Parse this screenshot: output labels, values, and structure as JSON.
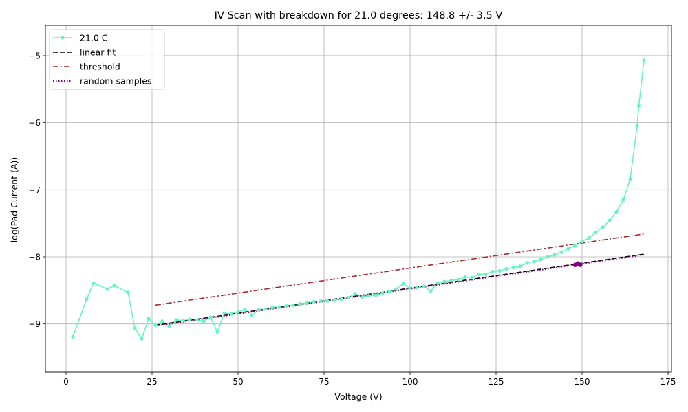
{
  "chart_data": {
    "type": "line",
    "title": "IV Scan with breakdown for 21.0 degrees: 148.8 +/- 3.5 V",
    "xlabel": "Voltage (V)",
    "ylabel": "log(Pad Current (A))",
    "xlim": [
      -6,
      176
    ],
    "ylim": [
      -9.72,
      -4.55
    ],
    "xticks": [
      0,
      25,
      50,
      75,
      100,
      125,
      150,
      175
    ],
    "xtick_labels": [
      "0",
      "25",
      "50",
      "75",
      "100",
      "125",
      "150",
      "175"
    ],
    "yticks": [
      -9,
      -8,
      -7,
      -6,
      -5
    ],
    "ytick_labels": [
      "−9",
      "−8",
      "−7",
      "−6",
      "−5"
    ],
    "grid": true,
    "legend_position": "top-left",
    "series": [
      {
        "name": "21.0 C",
        "style": "line-marker",
        "color": "#66f5c0",
        "x": [
          2,
          6,
          8,
          12,
          14,
          18,
          20,
          22,
          24,
          26,
          28,
          30,
          32,
          34,
          36,
          38,
          40,
          42,
          44,
          46,
          48,
          50,
          52,
          54,
          56,
          58,
          60,
          62,
          64,
          66,
          68,
          70,
          72,
          74,
          76,
          78,
          80,
          82,
          84,
          86,
          88,
          90,
          92,
          94,
          96,
          98,
          100,
          102,
          104,
          106,
          108,
          110,
          112,
          114,
          116,
          118,
          120,
          122,
          124,
          126,
          128,
          130,
          132,
          134,
          136,
          138,
          140,
          142,
          144,
          146,
          148,
          150,
          152,
          154,
          156,
          158,
          160,
          162,
          164,
          166,
          166.5,
          168
        ],
        "y": [
          -9.19,
          -8.63,
          -8.39,
          -8.48,
          -8.43,
          -8.53,
          -9.07,
          -9.22,
          -8.92,
          -9.02,
          -8.96,
          -9.04,
          -8.94,
          -8.95,
          -8.93,
          -8.94,
          -8.96,
          -8.9,
          -9.12,
          -8.84,
          -8.85,
          -8.82,
          -8.79,
          -8.87,
          -8.79,
          -8.78,
          -8.75,
          -8.75,
          -8.73,
          -8.72,
          -8.7,
          -8.69,
          -8.67,
          -8.66,
          -8.66,
          -8.65,
          -8.63,
          -8.61,
          -8.55,
          -8.6,
          -8.58,
          -8.57,
          -8.54,
          -8.52,
          -8.48,
          -8.4,
          -8.47,
          -8.46,
          -8.44,
          -8.51,
          -8.39,
          -8.37,
          -8.35,
          -8.34,
          -8.3,
          -8.31,
          -8.26,
          -8.26,
          -8.22,
          -8.21,
          -8.18,
          -8.16,
          -8.14,
          -8.09,
          -8.07,
          -8.04,
          -8.0,
          -7.97,
          -7.93,
          -7.88,
          -7.83,
          -7.77,
          -7.72,
          -7.64,
          -7.56,
          -7.46,
          -7.33,
          -7.15,
          -6.84,
          -6.05,
          -5.75,
          -5.07
        ]
      },
      {
        "name": "linear fit",
        "style": "dashed",
        "color": "#000000",
        "x": [
          26,
          168
        ],
        "y": [
          -9.02,
          -7.96
        ]
      },
      {
        "name": "threshold",
        "style": "dashdot",
        "color": "#a52a2a",
        "x": [
          26,
          168
        ],
        "y": [
          -8.72,
          -7.66
        ]
      },
      {
        "name": "random samples",
        "style": "dotted",
        "color": "#800080",
        "x": [
          26,
          168
        ],
        "y": [
          -9.03,
          -7.97
        ]
      }
    ],
    "breakdown_marker": {
      "color": "#800080",
      "x": [
        148.0,
        148.8,
        149.5
      ],
      "y": [
        -8.12,
        -8.1,
        -8.12
      ]
    }
  }
}
